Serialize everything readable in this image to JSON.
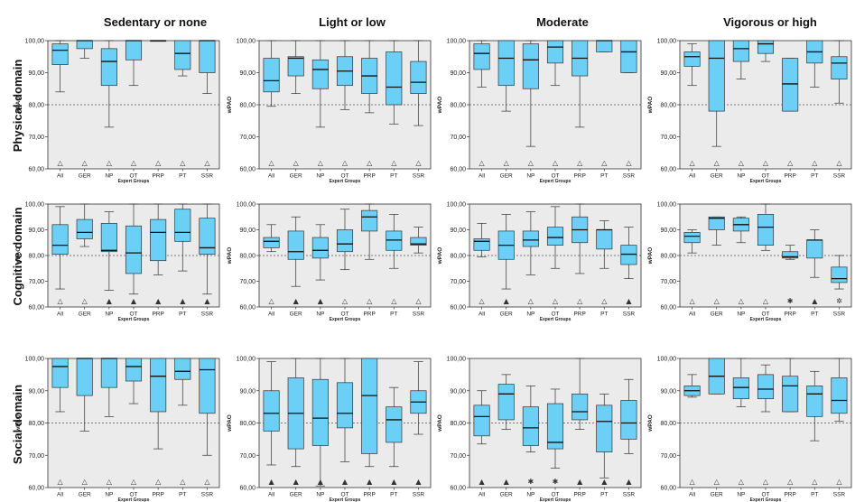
{
  "colors": {
    "box": "#6ccff6",
    "panel": "#ebebeb",
    "ref": "#555555"
  },
  "chart_data": {
    "type": "boxplot",
    "columns": [
      "Sedentary or none",
      "Light or low",
      "Moderate",
      "Vigorous or high"
    ],
    "rows": [
      "Physical domain",
      "Cognitive domain",
      "Social domain"
    ],
    "ylabel": "wPAO",
    "xlabel": "Expert Groups",
    "yticks": [
      "60,00",
      "70,00",
      "80,00",
      "90,00",
      "100,00"
    ],
    "ylim": [
      60,
      100
    ],
    "reference_line": 80,
    "groups": [
      "All",
      "GER",
      "NP",
      "OT",
      "PRP",
      "PT",
      "SSR"
    ],
    "grid": false,
    "panels": [
      {
        "row": 0,
        "col": 0,
        "boxes": [
          [
            84,
            92.5,
            97,
            99,
            100
          ],
          [
            94.5,
            97.5,
            100,
            100,
            100
          ],
          [
            73,
            86,
            93.5,
            97.5,
            100
          ],
          [
            86,
            94,
            100,
            100,
            100
          ],
          [
            100,
            100,
            100,
            100,
            100
          ],
          [
            89,
            91,
            96,
            100,
            100
          ],
          [
            83.5,
            90,
            100,
            100,
            100
          ]
        ],
        "markers": [
          "△",
          "△",
          "△",
          "△",
          "△",
          "△",
          "△"
        ]
      },
      {
        "row": 0,
        "col": 1,
        "boxes": [
          [
            79.5,
            84,
            87.5,
            94.5,
            100
          ],
          [
            83.5,
            89,
            94.5,
            95,
            100
          ],
          [
            73,
            85,
            91,
            94,
            100
          ],
          [
            78.5,
            86,
            90.5,
            95,
            100
          ],
          [
            77.5,
            83.5,
            89,
            94.5,
            100
          ],
          [
            74,
            80,
            85.5,
            96.5,
            100
          ],
          [
            73.5,
            83.5,
            87,
            93.5,
            100
          ]
        ],
        "markers": [
          "△",
          "△",
          "△",
          "△",
          "△",
          "△",
          "△"
        ]
      },
      {
        "row": 0,
        "col": 2,
        "boxes": [
          [
            85.5,
            91,
            96,
            99,
            100
          ],
          [
            78,
            86,
            94.5,
            100,
            100
          ],
          [
            67,
            85,
            94,
            99,
            100
          ],
          [
            86,
            93,
            98,
            100,
            100
          ],
          [
            73,
            89,
            94.5,
            100,
            100
          ],
          [
            96.5,
            96.5,
            100,
            100,
            100
          ],
          [
            90,
            90,
            96.5,
            100,
            100
          ]
        ],
        "markers": [
          "△",
          "△",
          "△",
          "△",
          "△",
          "△",
          "△"
        ]
      },
      {
        "row": 0,
        "col": 3,
        "boxes": [
          [
            86,
            92,
            95,
            96.5,
            99
          ],
          [
            67,
            78,
            94.5,
            100,
            100
          ],
          [
            88,
            93.5,
            97.5,
            100,
            100
          ],
          [
            93.5,
            96,
            99,
            100,
            100
          ],
          [
            78,
            78,
            86.5,
            94.5,
            94.5
          ],
          [
            85.5,
            93,
            96.5,
            100,
            100
          ],
          [
            80.5,
            88,
            93,
            95,
            100
          ]
        ],
        "markers": [
          "△",
          "△",
          "△",
          "△",
          "△",
          "△",
          "△"
        ]
      },
      {
        "row": 1,
        "col": 0,
        "boxes": [
          [
            67,
            80.5,
            84,
            92,
            99
          ],
          [
            83.5,
            86.5,
            89,
            94,
            100
          ],
          [
            66.5,
            81.5,
            82,
            92.5,
            97
          ],
          [
            65,
            73,
            81,
            91.5,
            100
          ],
          [
            72.5,
            78,
            89,
            94,
            100
          ],
          [
            74,
            85.5,
            89,
            98,
            100
          ],
          [
            65,
            80.5,
            83,
            94.5,
            100
          ]
        ],
        "markers": [
          "△",
          "△",
          "▲",
          "▲",
          "▲",
          "▲",
          "▲"
        ]
      },
      {
        "row": 1,
        "col": 1,
        "boxes": [
          [
            81.5,
            83,
            85.5,
            87,
            92
          ],
          [
            68,
            78.5,
            81.5,
            89.5,
            95
          ],
          [
            70.5,
            79,
            82,
            87,
            92
          ],
          [
            74.5,
            81.5,
            84.5,
            90,
            98
          ],
          [
            78.5,
            89.5,
            95,
            97.5,
            100
          ],
          [
            75,
            82,
            86,
            89.5,
            96
          ],
          [
            81,
            84,
            84.5,
            87,
            91
          ]
        ],
        "markers": [
          "△",
          "▲",
          "▲",
          "△",
          "△",
          "△",
          "△"
        ]
      },
      {
        "row": 1,
        "col": 2,
        "boxes": [
          [
            79.5,
            82,
            85.5,
            86.5,
            92.5
          ],
          [
            67,
            78.5,
            84,
            89.5,
            96
          ],
          [
            72.5,
            83.5,
            86,
            89.5,
            97
          ],
          [
            75,
            84,
            87,
            91,
            99
          ],
          [
            73,
            85,
            90,
            95,
            100
          ],
          [
            75,
            82.5,
            90,
            90,
            93.5
          ],
          [
            71,
            76.5,
            80.5,
            84,
            91
          ]
        ],
        "markers": [
          "△",
          "▲",
          "△",
          "△",
          "△",
          "△",
          "▲"
        ]
      },
      {
        "row": 1,
        "col": 3,
        "boxes": [
          [
            81,
            85,
            87.5,
            89,
            90
          ],
          [
            84,
            90,
            94.5,
            95,
            95
          ],
          [
            85,
            89.5,
            92,
            94.5,
            95
          ],
          [
            82,
            84,
            91,
            96,
            100
          ],
          [
            78.5,
            79,
            79.5,
            81.5,
            84
          ],
          [
            71.5,
            79,
            86,
            86,
            90
          ],
          [
            67,
            69.5,
            71,
            75.5,
            80
          ]
        ],
        "markers": [
          "△",
          "△",
          "△",
          "△",
          "✱",
          "▲",
          "✲"
        ]
      },
      {
        "row": 2,
        "col": 0,
        "boxes": [
          [
            83.5,
            91,
            97.5,
            100,
            100
          ],
          [
            77.5,
            88.5,
            100,
            100,
            100
          ],
          [
            82,
            91,
            100,
            100,
            100
          ],
          [
            86,
            93,
            97.5,
            100,
            100
          ],
          [
            72,
            83.5,
            94.5,
            100,
            100
          ],
          [
            85.5,
            93.5,
            96,
            100,
            100
          ],
          [
            70,
            83,
            96.5,
            100,
            100
          ]
        ],
        "markers": [
          "△",
          "△",
          "△",
          "△",
          "△",
          "△",
          "△"
        ]
      },
      {
        "row": 2,
        "col": 1,
        "boxes": [
          [
            67,
            77.5,
            83,
            90,
            99
          ],
          [
            66.5,
            72,
            83,
            94,
            100
          ],
          [
            60.5,
            73,
            81.5,
            93.5,
            100
          ],
          [
            68,
            78.5,
            83,
            92.5,
            100
          ],
          [
            66.5,
            70.5,
            88.5,
            100,
            100
          ],
          [
            66.5,
            74,
            81,
            85,
            91
          ],
          [
            76.5,
            83,
            86.5,
            90,
            99
          ]
        ],
        "markers": [
          "▲",
          "▲",
          "▲",
          "▲",
          "▲",
          "▲",
          "▲"
        ]
      },
      {
        "row": 2,
        "col": 2,
        "boxes": [
          [
            73.5,
            76,
            82,
            85.5,
            90
          ],
          [
            78,
            81,
            89,
            92,
            95
          ],
          [
            71,
            73,
            78.5,
            85,
            91.5
          ],
          [
            66,
            72,
            74,
            86,
            90.5
          ],
          [
            78,
            81,
            83.5,
            89,
            100
          ],
          [
            63,
            71,
            80.5,
            85.5,
            89
          ],
          [
            70.5,
            75,
            80,
            87,
            93.5
          ]
        ],
        "markers": [
          "▲",
          "▲",
          "✱",
          "✱",
          "▲",
          "▲",
          "▲"
        ]
      },
      {
        "row": 2,
        "col": 3,
        "boxes": [
          [
            88,
            88.5,
            90,
            91.5,
            95
          ],
          [
            89,
            89,
            94.5,
            100,
            100
          ],
          [
            85,
            87.5,
            91,
            94,
            100
          ],
          [
            83.5,
            87.5,
            90.5,
            95,
            98
          ],
          [
            83.5,
            83.5,
            91.5,
            94.5,
            100
          ],
          [
            74.5,
            82,
            89,
            91.5,
            96
          ],
          [
            80.5,
            83,
            87,
            94,
            100
          ]
        ],
        "markers": [
          "△",
          "△",
          "△",
          "△",
          "△",
          "△",
          "△"
        ]
      }
    ]
  }
}
